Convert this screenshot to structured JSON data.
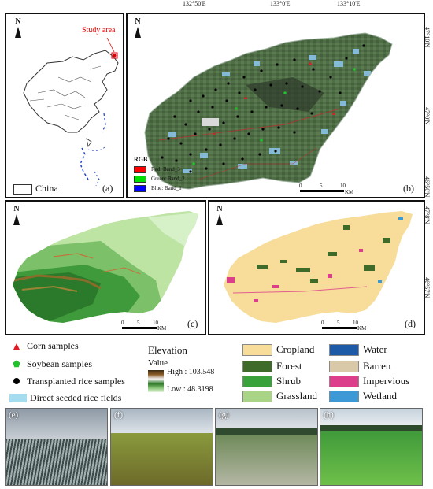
{
  "coords_top": [
    "132°50'E",
    "133°0'E",
    "133°10'E"
  ],
  "coords_right_b": [
    "47°10'N",
    "47°0'N",
    "46°50'N"
  ],
  "coords_right_d": [
    "47°8'N",
    "46°57'N"
  ],
  "panel_a": {
    "study_area_label": "Study area",
    "china_label": "China",
    "panel_label": "(a)"
  },
  "panel_b": {
    "panel_label": "(b)",
    "rgb_title": "RGB",
    "rgb_bands": [
      {
        "label": "Red:  Band_3",
        "color": "#ff0000"
      },
      {
        "label": "Green: Band_2",
        "color": "#00dd00"
      },
      {
        "label": "Blue:  Band_1",
        "color": "#0000ff"
      }
    ],
    "scale_ticks": [
      "0",
      "5",
      "10"
    ],
    "scale_unit": "KM"
  },
  "panel_c": {
    "panel_label": "(c)",
    "scale_ticks": [
      "0",
      "5",
      "10"
    ],
    "scale_unit": "KM"
  },
  "panel_d": {
    "panel_label": "(d)",
    "scale_ticks": [
      "0",
      "5",
      "10"
    ],
    "scale_unit": "KM"
  },
  "north_label": "N",
  "sample_legend": [
    {
      "label": "Corn samples",
      "symbol": "red-triangle",
      "color": "#e01b24"
    },
    {
      "label": "Soybean samples",
      "symbol": "green-pentagon",
      "color": "#22c02a"
    },
    {
      "label": "Transplanted rice samples",
      "symbol": "black-circle",
      "color": "#000000"
    },
    {
      "label": "Direct seeded rice fields",
      "symbol": "light-blue-box",
      "color": "#a6dcf0"
    }
  ],
  "elevation_legend": {
    "title": "Elevation",
    "value_label": "Value",
    "high": "High : 103.548",
    "low": "Low : 48.3198"
  },
  "landcover_legend": [
    {
      "label": "Cropland",
      "color": "#f7dc9a"
    },
    {
      "label": "Forest",
      "color": "#3f6b2a"
    },
    {
      "label": "Shrub",
      "color": "#3aa23a"
    },
    {
      "label": "Grassland",
      "color": "#a9d486"
    },
    {
      "label": "Water",
      "color": "#1c5aa8"
    },
    {
      "label": "Barren",
      "color": "#d9c9a8"
    },
    {
      "label": "Impervious",
      "color": "#dd3e8c"
    },
    {
      "label": "Wetland",
      "color": "#3c99d6"
    }
  ],
  "photos": [
    {
      "label": "(e)"
    },
    {
      "label": "(f)"
    },
    {
      "label": "(g)"
    },
    {
      "label": "(h)"
    }
  ]
}
